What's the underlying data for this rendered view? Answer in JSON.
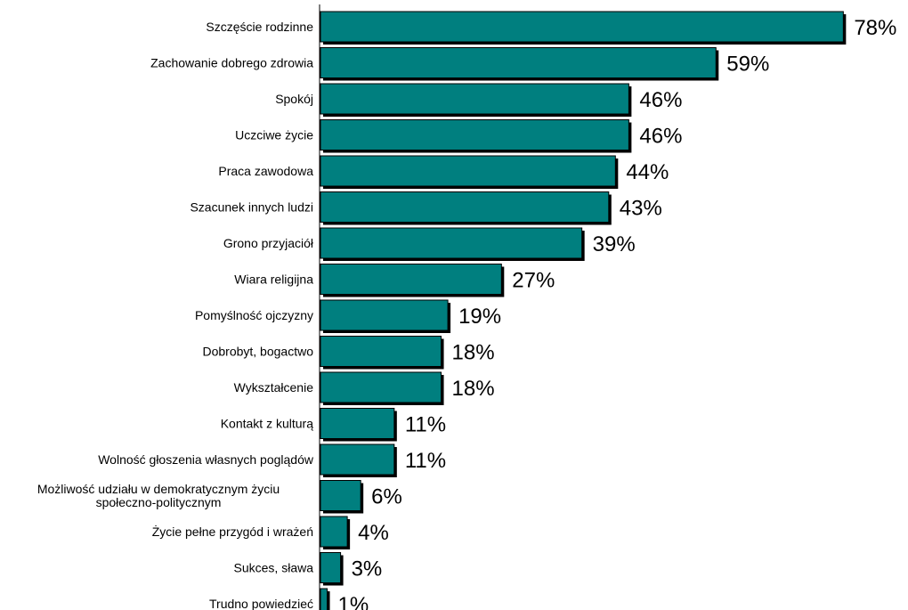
{
  "chart_data": {
    "type": "bar",
    "orientation": "horizontal",
    "title": "",
    "xlabel": "",
    "ylabel": "",
    "xlim": [
      0,
      100
    ],
    "grid": false,
    "legend": "none",
    "bar_color": "#007f7f",
    "bar_shadow_color": "#000000",
    "value_suffix": "%",
    "categories": [
      [
        "Szczęście rodzinne"
      ],
      [
        "Zachowanie dobrego zdrowia"
      ],
      [
        "Spokój"
      ],
      [
        "Uczciwe życie"
      ],
      [
        "Praca zawodowa"
      ],
      [
        "Szacunek innych ludzi"
      ],
      [
        "Grono przyjaciół"
      ],
      [
        "Wiara religijna"
      ],
      [
        "Pomyślność ojczyzny"
      ],
      [
        "Dobrobyt, bogactwo"
      ],
      [
        "Wykształcenie"
      ],
      [
        "Kontakt z kulturą"
      ],
      [
        "Wolność głoszenia własnych poglądów"
      ],
      [
        "Możliwość udziału w demokratycznym życiu",
        "społeczno-politycznym"
      ],
      [
        "Życie pełne przygód i wrażeń"
      ],
      [
        "Sukces, sława"
      ],
      [
        "Trudno powiedzieć"
      ]
    ],
    "values": [
      78,
      59,
      46,
      46,
      44,
      43,
      39,
      27,
      19,
      18,
      18,
      11,
      11,
      6,
      4,
      3,
      1
    ],
    "value_labels": [
      "78%",
      "59%",
      "46%",
      "46%",
      "44%",
      "43%",
      "39%",
      "27%",
      "19%",
      "18%",
      "18%",
      "11%",
      "11%",
      "6%",
      "4%",
      "3%",
      "1%"
    ]
  }
}
